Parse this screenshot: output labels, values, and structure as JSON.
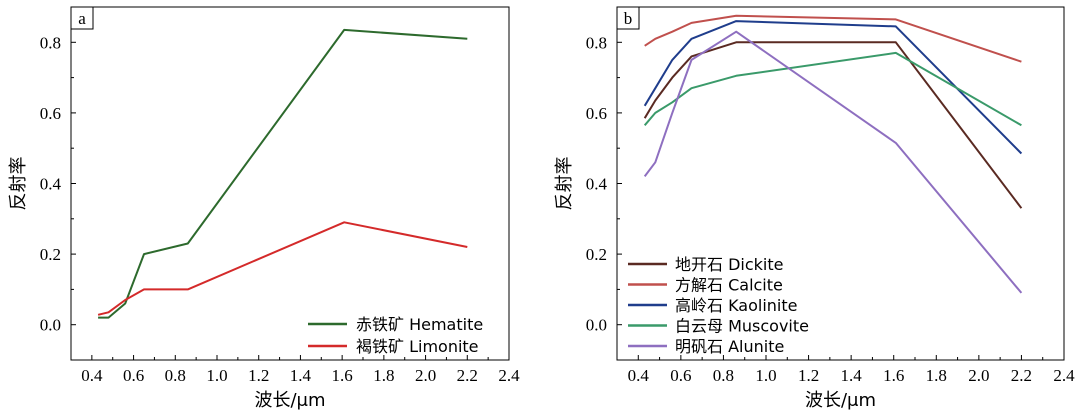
{
  "chart_data": [
    {
      "type": "line",
      "panel_label": "a",
      "xlabel": "波长/μm",
      "ylabel": "反射率",
      "xlim": [
        0.3,
        2.4
      ],
      "ylim": [
        -0.1,
        0.9
      ],
      "xticks": [
        "0.4",
        "0.6",
        "0.8",
        "1.0",
        "1.2",
        "1.4",
        "1.6",
        "1.8",
        "2.0",
        "2.2",
        "2.4"
      ],
      "yticks": [
        "0.0",
        "0.2",
        "0.4",
        "0.6",
        "0.8"
      ],
      "legend_position": "bottom-right",
      "series": [
        {
          "name": "赤铁矿 Hematite",
          "color": "#2d6a2d",
          "x": [
            0.43,
            0.48,
            0.56,
            0.65,
            0.86,
            1.61,
            2.2
          ],
          "y": [
            0.02,
            0.02,
            0.06,
            0.2,
            0.23,
            0.835,
            0.81
          ]
        },
        {
          "name": "褐铁矿 Limonite",
          "color": "#d42a2a",
          "x": [
            0.43,
            0.48,
            0.56,
            0.65,
            0.86,
            1.61,
            2.2
          ],
          "y": [
            0.028,
            0.035,
            0.07,
            0.1,
            0.1,
            0.29,
            0.22
          ]
        }
      ]
    },
    {
      "type": "line",
      "panel_label": "b",
      "xlabel": "波长/μm",
      "ylabel": "反射率",
      "xlim": [
        0.3,
        2.4
      ],
      "ylim": [
        -0.1,
        0.9
      ],
      "xticks": [
        "0.4",
        "0.6",
        "0.8",
        "1.0",
        "1.2",
        "1.4",
        "1.6",
        "1.8",
        "2.0",
        "2.2",
        "2.4"
      ],
      "yticks": [
        "0.0",
        "0.2",
        "0.4",
        "0.6",
        "0.8"
      ],
      "legend_position": "bottom-left",
      "series": [
        {
          "name": "地开石 Dickite",
          "color": "#5a2a22",
          "x": [
            0.43,
            0.48,
            0.56,
            0.65,
            0.86,
            1.61,
            2.2
          ],
          "y": [
            0.585,
            0.635,
            0.7,
            0.76,
            0.8,
            0.8,
            0.33
          ]
        },
        {
          "name": "方解石 Calcite",
          "color": "#c0504d",
          "x": [
            0.43,
            0.48,
            0.56,
            0.65,
            0.86,
            1.61,
            2.2
          ],
          "y": [
            0.79,
            0.81,
            0.83,
            0.855,
            0.875,
            0.865,
            0.745
          ]
        },
        {
          "name": "高岭石 Kaolinite",
          "color": "#1f3d8c",
          "x": [
            0.43,
            0.48,
            0.56,
            0.65,
            0.86,
            1.61,
            2.2
          ],
          "y": [
            0.62,
            0.67,
            0.75,
            0.81,
            0.86,
            0.845,
            0.485
          ]
        },
        {
          "name": "白云母 Muscovite",
          "color": "#3a9a6a",
          "x": [
            0.43,
            0.48,
            0.56,
            0.65,
            0.86,
            1.61,
            2.2
          ],
          "y": [
            0.565,
            0.6,
            0.63,
            0.67,
            0.705,
            0.77,
            0.565
          ]
        },
        {
          "name": "明矾石 Alunite",
          "color": "#8e6fc0",
          "x": [
            0.43,
            0.48,
            0.56,
            0.65,
            0.86,
            1.61,
            2.2
          ],
          "y": [
            0.42,
            0.46,
            0.6,
            0.75,
            0.83,
            0.515,
            0.09
          ]
        }
      ]
    }
  ]
}
